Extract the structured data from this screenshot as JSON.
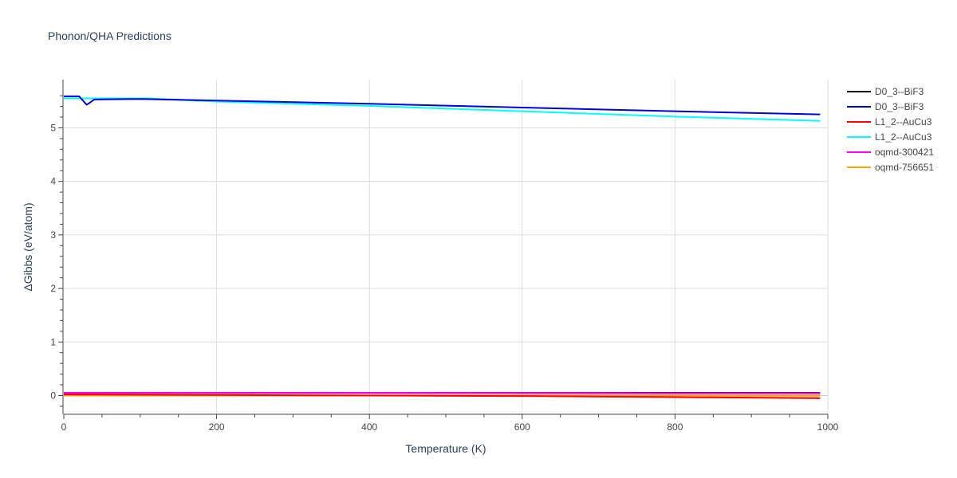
{
  "chart_data": {
    "type": "line",
    "title": "Phonon/QHA Predictions",
    "xlabel": "Temperature (K)",
    "ylabel": "ΔGibbs (eV/atom)",
    "xlim": [
      0,
      1000
    ],
    "ylim": [
      -0.35,
      5.9
    ],
    "x_ticks": [
      0,
      200,
      400,
      600,
      800,
      1000
    ],
    "y_ticks": [
      0,
      1,
      2,
      3,
      4,
      5
    ],
    "grid": true,
    "legend_position": "top-right",
    "series": [
      {
        "name": "D0_3--BiF3",
        "color": "#000000",
        "points": [
          [
            0,
            0.05
          ],
          [
            100,
            0.05
          ],
          [
            200,
            0.05
          ],
          [
            400,
            0.05
          ],
          [
            600,
            0.05
          ],
          [
            800,
            0.05
          ],
          [
            990,
            0.05
          ]
        ]
      },
      {
        "name": "D0_3--BiF3",
        "color": "#0000dd",
        "points": [
          [
            0,
            5.59
          ],
          [
            20,
            5.59
          ],
          [
            30,
            5.43
          ],
          [
            40,
            5.53
          ],
          [
            100,
            5.54
          ],
          [
            200,
            5.51
          ],
          [
            400,
            5.45
          ],
          [
            600,
            5.38
          ],
          [
            800,
            5.31
          ],
          [
            990,
            5.25
          ]
        ]
      },
      {
        "name": "L1_2--AuCu3",
        "color": "#ff0000",
        "points": [
          [
            0,
            0.02
          ],
          [
            200,
            0.01
          ],
          [
            400,
            0.0
          ],
          [
            600,
            -0.01
          ],
          [
            800,
            -0.03
          ],
          [
            990,
            -0.05
          ]
        ]
      },
      {
        "name": "L1_2--AuCu3",
        "color": "#00ffff",
        "points": [
          [
            0,
            5.55
          ],
          [
            110,
            5.55
          ],
          [
            200,
            5.49
          ],
          [
            400,
            5.41
          ],
          [
            600,
            5.31
          ],
          [
            800,
            5.21
          ],
          [
            990,
            5.13
          ]
        ]
      },
      {
        "name": "oqmd-300421",
        "color": "#ff00ff",
        "points": [
          [
            0,
            0.05
          ],
          [
            200,
            0.05
          ],
          [
            400,
            0.05
          ],
          [
            600,
            0.045
          ],
          [
            800,
            0.04
          ],
          [
            990,
            0.04
          ]
        ]
      },
      {
        "name": "oqmd-756651",
        "color": "#ffa500",
        "points": [
          [
            0,
            0.0
          ],
          [
            200,
            0.0
          ],
          [
            400,
            0.0
          ],
          [
            600,
            0.0
          ],
          [
            800,
            0.0
          ],
          [
            990,
            0.0
          ]
        ]
      }
    ]
  }
}
